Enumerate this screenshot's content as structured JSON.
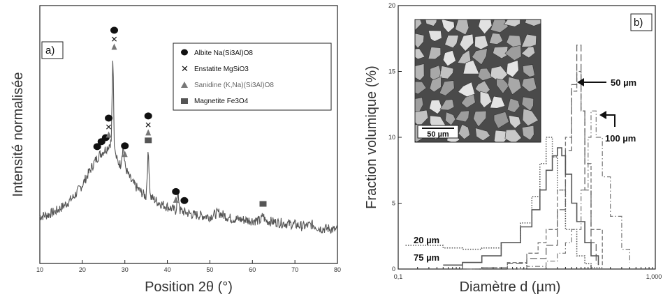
{
  "chart_data": [
    {
      "type": "line",
      "panel_label": "a)",
      "xlabel": "Position 2θ (°)",
      "ylabel": "Intensité normalisée",
      "xlim": [
        10,
        80
      ],
      "xticks": [
        "10",
        "20",
        "30",
        "40",
        "50",
        "60",
        "70",
        "80"
      ],
      "series": [
        {
          "x": [
            10,
            12,
            14,
            16,
            18,
            20,
            22,
            23,
            24,
            25,
            26,
            26.8,
            27.2,
            27.5,
            27.8,
            28.2,
            29,
            29.6,
            30,
            30.6,
            31.5,
            33,
            35,
            35.5,
            36,
            38,
            40,
            42,
            42.5,
            43,
            46,
            50,
            52,
            55,
            60,
            62,
            62.5,
            63,
            66,
            70,
            72,
            74,
            76,
            78,
            80
          ],
          "y": [
            12,
            13,
            15,
            18,
            22,
            28,
            36,
            40,
            43,
            45,
            47,
            50,
            95,
            48,
            44,
            40,
            38,
            48,
            38,
            34,
            30,
            26,
            22,
            45,
            22,
            19,
            17,
            15,
            24,
            15,
            13,
            12,
            14,
            11,
            10,
            10,
            13,
            10,
            9,
            8,
            7,
            8,
            6,
            6,
            5
          ]
        }
      ],
      "markers": [
        {
          "phase": "albite",
          "x": [
            23.5,
            24.5,
            25.5,
            26.2,
            27.5,
            30,
            35.5,
            42,
            44
          ]
        },
        {
          "phase": "enstatite",
          "x": [
            26.2,
            27.5,
            35.5
          ]
        },
        {
          "phase": "sanidine",
          "x": [
            26.2,
            27.5,
            30,
            35.5,
            42
          ]
        },
        {
          "phase": "magnetite",
          "x": [
            35.5,
            62.5
          ]
        }
      ],
      "legend": {
        "placement": "top-right",
        "entries": [
          {
            "symbol": "circle",
            "text": "Albite Na(Si3Al)O8"
          },
          {
            "symbol": "cross",
            "text": "Enstatite MgSiO3"
          },
          {
            "symbol": "triangle",
            "text": "Sanidine (K,Na)(Si3Al)O8",
            "color": "#777777"
          },
          {
            "symbol": "square",
            "text": "Magnetite Fe3O4",
            "color": "#555555"
          }
        ]
      }
    },
    {
      "type": "line",
      "panel_label": "b)",
      "xlabel": "Diamètre d (µm)",
      "ylabel": "Fraction volumique (%)",
      "xscale": "log",
      "xlim": [
        0.1,
        1000
      ],
      "ylim": [
        0,
        20
      ],
      "xticks": [
        "0,1",
        "1,000"
      ],
      "yticks": [
        "0",
        "5",
        "10",
        "15",
        "20"
      ],
      "series": [
        {
          "name": "20 µm",
          "style": "dotted",
          "x": [
            0.13,
            0.5,
            1,
            2,
            4,
            8,
            12,
            16,
            20,
            25,
            30,
            40,
            60,
            80,
            100,
            150
          ],
          "y": [
            1.8,
            1.6,
            1.5,
            1.6,
            2.0,
            3.5,
            5.5,
            8.0,
            10.0,
            8.5,
            6.0,
            3.0,
            1.0,
            0.4,
            0.1,
            0
          ]
        },
        {
          "name": "75 µm",
          "style": "dashed",
          "x": [
            1,
            2,
            5,
            10,
            15,
            20,
            30,
            40,
            50,
            60,
            70,
            80,
            100,
            150
          ],
          "y": [
            0,
            0.1,
            0.5,
            1.2,
            2.0,
            3.0,
            6.0,
            10.0,
            13.5,
            15.0,
            12.0,
            8.0,
            3.0,
            0.3
          ]
        },
        {
          "name": "50 µm",
          "style": "long-dash",
          "x": [
            1,
            2,
            5,
            10,
            20,
            30,
            40,
            50,
            60,
            70,
            80,
            100,
            120
          ],
          "y": [
            0,
            0.1,
            0.4,
            0.8,
            1.8,
            4.5,
            9.0,
            14.0,
            17.0,
            12.0,
            6.0,
            2.0,
            0.4
          ]
        },
        {
          "name": "100 µm",
          "style": "dash-dot",
          "x": [
            5,
            10,
            20,
            30,
            40,
            50,
            70,
            90,
            100,
            120,
            150,
            200,
            300,
            400
          ],
          "y": [
            0,
            0.2,
            0.6,
            1.2,
            2.0,
            3.0,
            6.0,
            10.0,
            12.0,
            10.0,
            7.0,
            4.0,
            1.5,
            0.5
          ]
        },
        {
          "name": "solid",
          "x": [
            0.5,
            1,
            2,
            4,
            8,
            12,
            16,
            20,
            25,
            30,
            35,
            40,
            50,
            60,
            80,
            100,
            130
          ],
          "y": [
            0.3,
            0.5,
            1.0,
            2.0,
            3.2,
            4.5,
            6.0,
            7.5,
            8.6,
            9.2,
            8.6,
            7.2,
            5.0,
            3.6,
            2.0,
            1.0,
            0.3
          ]
        }
      ],
      "annotations": [
        {
          "text": "50 µm"
        },
        {
          "text": "100 µm"
        },
        {
          "text": "20 µm"
        },
        {
          "text": "75 µm"
        }
      ],
      "inset": {
        "scale_bar": "50 µm"
      }
    }
  ]
}
